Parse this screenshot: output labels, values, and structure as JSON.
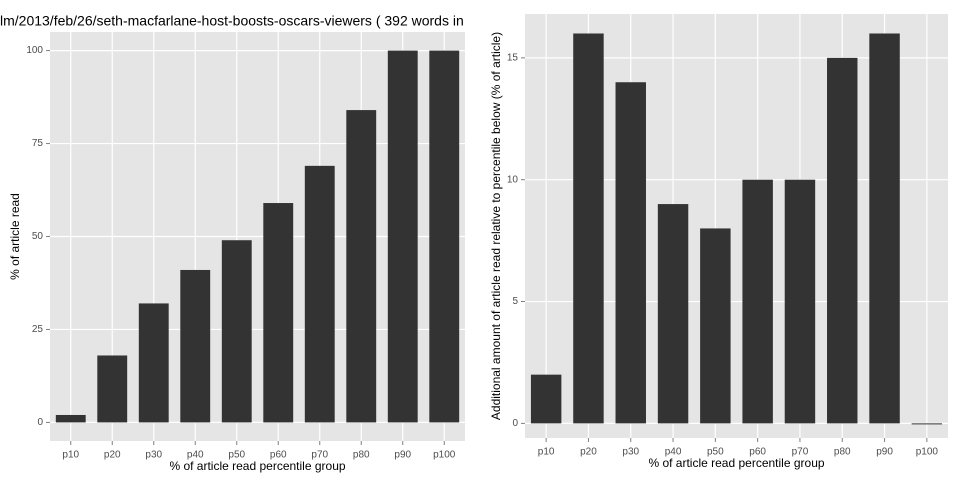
{
  "chart_data": [
    {
      "type": "bar",
      "title": "lm/2013/feb/26/seth-macfarlane-host-boosts-oscars-viewers ( 392 words in",
      "x_label": "% of article read percentile group",
      "y_label": "% of article read",
      "categories": [
        "p10",
        "p20",
        "p30",
        "p40",
        "p50",
        "p60",
        "p70",
        "p80",
        "p90",
        "p100"
      ],
      "values": [
        2,
        18,
        32,
        41,
        49,
        59,
        69,
        84,
        100,
        100
      ],
      "color": "#333333",
      "ylim": [
        -5,
        105
      ],
      "yticks": [
        0,
        25,
        50,
        75,
        100
      ],
      "grid": true
    },
    {
      "type": "bar",
      "x_label": "% of article read percentile group",
      "y_label": "Additional amount of article read relative to percentile below (% of article)",
      "categories": [
        "p10",
        "p20",
        "p30",
        "p40",
        "p50",
        "p60",
        "p70",
        "p80",
        "p90",
        "p100"
      ],
      "values": [
        2,
        16,
        14,
        9,
        8,
        10,
        10,
        15,
        16,
        0
      ],
      "color": "#333333",
      "ylim": [
        -0.6,
        16.8
      ],
      "yticks": [
        0,
        5,
        10,
        15
      ],
      "grid": true
    }
  ]
}
